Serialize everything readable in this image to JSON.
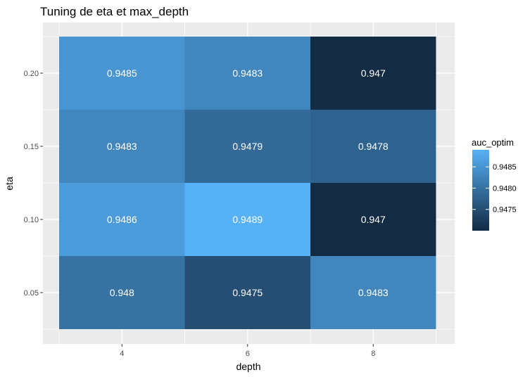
{
  "chart_data": {
    "type": "heatmap",
    "title": "Tuning de eta et max_depth",
    "xlabel": "depth",
    "ylabel": "eta",
    "x": [
      4,
      6,
      8
    ],
    "y": [
      0.05,
      0.1,
      0.15,
      0.2
    ],
    "x_tick_labels": [
      "4",
      "6",
      "8"
    ],
    "y_tick_labels": [
      "0.05",
      "0.10",
      "0.15",
      "0.20"
    ],
    "cells": [
      {
        "x": 4,
        "y": 0.2,
        "value": 0.9485,
        "label": "0.9485"
      },
      {
        "x": 6,
        "y": 0.2,
        "value": 0.9483,
        "label": "0.9483"
      },
      {
        "x": 8,
        "y": 0.2,
        "value": 0.947,
        "label": "0.947"
      },
      {
        "x": 4,
        "y": 0.15,
        "value": 0.9483,
        "label": "0.9483"
      },
      {
        "x": 6,
        "y": 0.15,
        "value": 0.9479,
        "label": "0.9479"
      },
      {
        "x": 8,
        "y": 0.15,
        "value": 0.9478,
        "label": "0.9478"
      },
      {
        "x": 4,
        "y": 0.1,
        "value": 0.9486,
        "label": "0.9486"
      },
      {
        "x": 6,
        "y": 0.1,
        "value": 0.9489,
        "label": "0.9489"
      },
      {
        "x": 8,
        "y": 0.1,
        "value": 0.947,
        "label": "0.947"
      },
      {
        "x": 4,
        "y": 0.05,
        "value": 0.948,
        "label": "0.948"
      },
      {
        "x": 6,
        "y": 0.05,
        "value": 0.9475,
        "label": "0.9475"
      },
      {
        "x": 8,
        "y": 0.05,
        "value": 0.9483,
        "label": "0.9483"
      }
    ],
    "legend": {
      "title": "auc_optim",
      "position": "right",
      "breaks": [
        0.9475,
        0.948,
        0.9485
      ],
      "break_labels": [
        "0.9475",
        "0.9480",
        "0.9485"
      ],
      "low_color": "#132B43",
      "high_color": "#56B1F7"
    },
    "grid": true,
    "panel_background": "#EBEBEB"
  }
}
